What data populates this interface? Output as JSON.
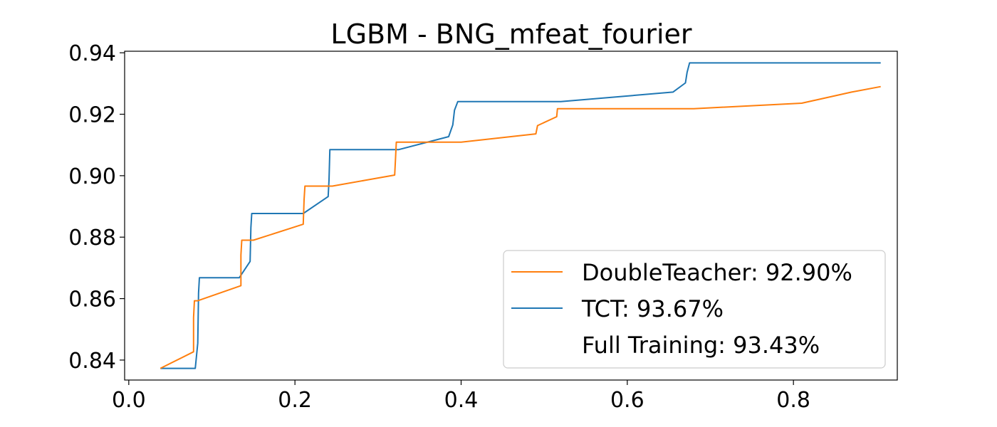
{
  "chart_data": {
    "type": "line",
    "title": "LGBM - BNG_mfeat_fourier",
    "xlabel": "",
    "ylabel": "",
    "xlim": [
      -0.005,
      0.925
    ],
    "ylim": [
      0.8335,
      0.9405
    ],
    "x_ticks": [
      0.0,
      0.2,
      0.4,
      0.6,
      0.8
    ],
    "x_tick_labels": [
      "0.0",
      "0.2",
      "0.4",
      "0.6",
      "0.8"
    ],
    "y_ticks": [
      0.84,
      0.86,
      0.88,
      0.9,
      0.92,
      0.94
    ],
    "y_tick_labels": [
      "0.84",
      "0.86",
      "0.88",
      "0.90",
      "0.92",
      "0.94"
    ],
    "grid": false,
    "legend_position": "bottom-right",
    "series": [
      {
        "name": "DoubleTeacher: 92.90%",
        "color": "#ff7f0e",
        "x": [
          0.038,
          0.078,
          0.078,
          0.079,
          0.083,
          0.135,
          0.135,
          0.136,
          0.15,
          0.21,
          0.211,
          0.212,
          0.213,
          0.245,
          0.32,
          0.321,
          0.322,
          0.4,
          0.49,
          0.492,
          0.515,
          0.516,
          0.518,
          0.68,
          0.81,
          0.87,
          0.905
        ],
        "y": [
          0.8373,
          0.8427,
          0.8538,
          0.8593,
          0.8593,
          0.8642,
          0.8742,
          0.879,
          0.879,
          0.8842,
          0.8922,
          0.8966,
          0.8966,
          0.8966,
          0.9002,
          0.9051,
          0.9109,
          0.9109,
          0.9136,
          0.9163,
          0.9192,
          0.9218,
          0.9218,
          0.9218,
          0.9236,
          0.9272,
          0.929
        ]
      },
      {
        "name": "TCT: 93.67%",
        "color": "#1f77b4",
        "x": [
          0.038,
          0.08,
          0.083,
          0.084,
          0.085,
          0.133,
          0.146,
          0.147,
          0.148,
          0.21,
          0.24,
          0.241,
          0.242,
          0.325,
          0.385,
          0.39,
          0.392,
          0.396,
          0.52,
          0.655,
          0.67,
          0.672,
          0.675,
          0.905
        ],
        "y": [
          0.8373,
          0.8373,
          0.8455,
          0.8618,
          0.8668,
          0.8668,
          0.8721,
          0.8831,
          0.8877,
          0.8877,
          0.8932,
          0.8985,
          0.9085,
          0.9085,
          0.9127,
          0.9165,
          0.9213,
          0.9241,
          0.9241,
          0.9272,
          0.9302,
          0.9336,
          0.9367,
          0.9367
        ]
      },
      {
        "name": "Full Training: 93.43%",
        "color": "#ffffff",
        "x": [],
        "y": []
      }
    ]
  }
}
